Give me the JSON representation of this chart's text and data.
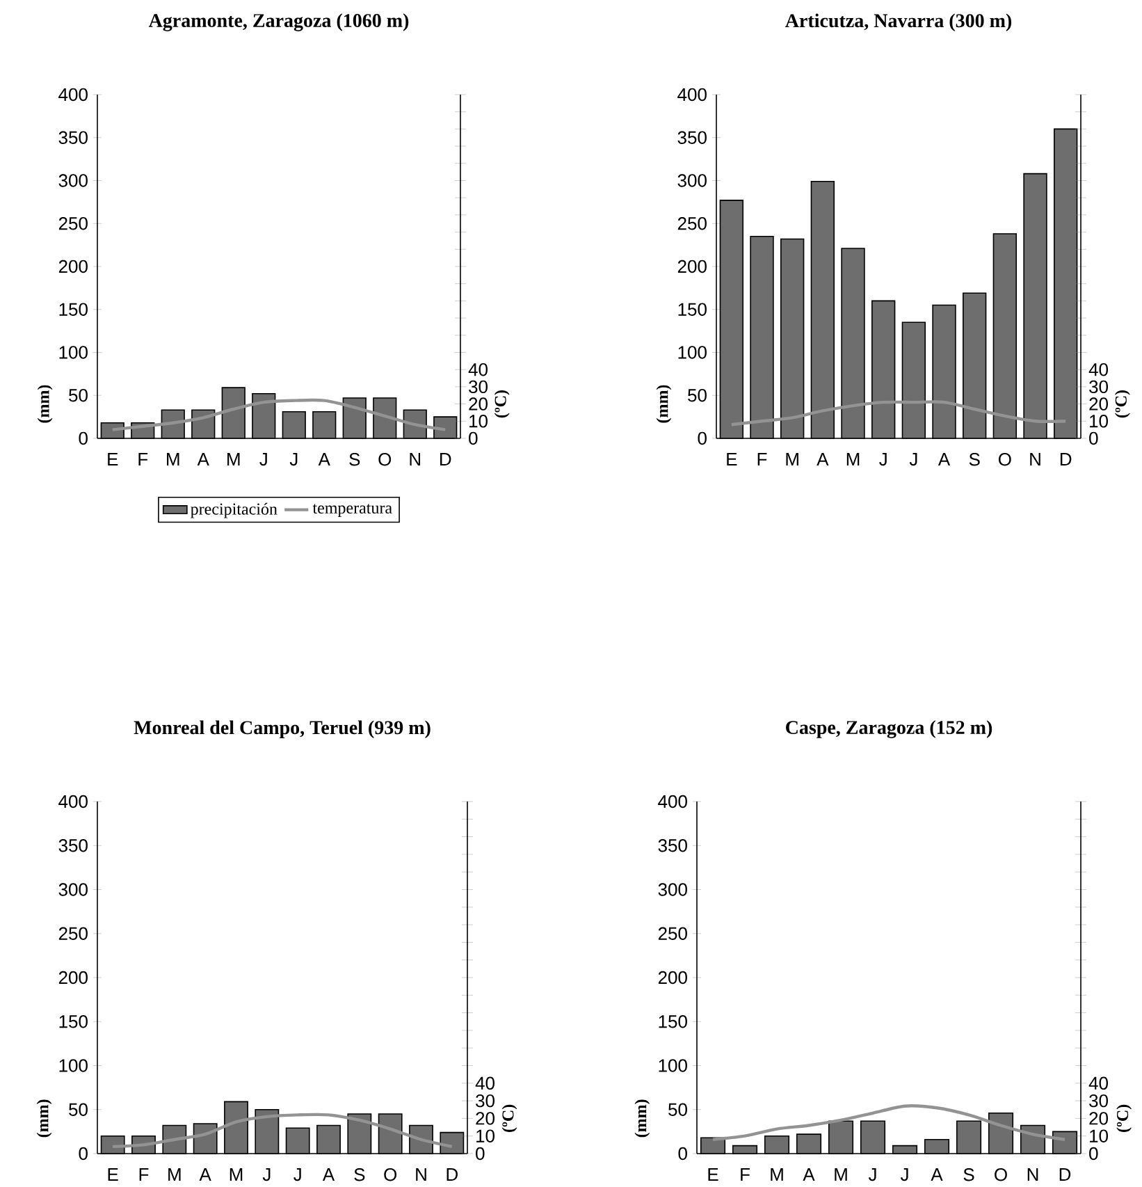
{
  "chart_data": [
    {
      "type": "bar",
      "title": "Agramonte, Zaragoza (1060 m)",
      "ylabel": "(mm)",
      "y2label": "(ºC)",
      "categories": [
        "E",
        "F",
        "M",
        "A",
        "M",
        "J",
        "J",
        "A",
        "S",
        "O",
        "N",
        "D"
      ],
      "ylim": [
        0,
        400
      ],
      "yticks": [
        0,
        50,
        100,
        150,
        200,
        250,
        300,
        350,
        400
      ],
      "y2lim": [
        0,
        200
      ],
      "y2ticks": [
        0,
        10,
        20,
        30,
        40,
        {
          "value": 50,
          "label": null
        },
        {
          "value": 60,
          "label": null
        },
        {
          "value": 70,
          "label": null
        },
        {
          "value": 80,
          "label": null
        },
        {
          "value": 90,
          "label": null
        },
        {
          "value": 100,
          "label": null
        },
        {
          "value": 110,
          "label": null
        },
        {
          "value": 120,
          "label": null
        },
        {
          "value": 130,
          "label": null
        },
        {
          "value": 140,
          "label": null
        },
        {
          "value": 150,
          "label": null
        },
        {
          "value": 160,
          "label": null
        },
        {
          "value": 170,
          "label": null
        },
        {
          "value": 180,
          "label": null
        },
        {
          "value": 190,
          "label": null
        },
        {
          "value": 200,
          "label": null
        }
      ],
      "legend": "bottom",
      "series": [
        {
          "name": "precipitación",
          "color": "#6e6e6e",
          "values": [
            18,
            18,
            33,
            33,
            59,
            52,
            31,
            31,
            47,
            47,
            33,
            25
          ]
        },
        {
          "name": "temperatura",
          "type": "line",
          "axis": "y2",
          "color": "#939393",
          "values": [
            5,
            7,
            9,
            12,
            17,
            21,
            22,
            22,
            18,
            13,
            8,
            5
          ]
        }
      ]
    },
    {
      "type": "bar",
      "title": "Articutza, Navarra (300 m)",
      "ylabel": "(mm)",
      "y2label": "(ºC)",
      "categories": [
        "E",
        "F",
        "M",
        "A",
        "M",
        "J",
        "J",
        "A",
        "S",
        "O",
        "N",
        "D"
      ],
      "ylim": [
        0,
        400
      ],
      "yticks": [
        0,
        50,
        100,
        150,
        200,
        250,
        300,
        350,
        400
      ],
      "y2lim": [
        0,
        200
      ],
      "y2ticks": [
        0,
        10,
        20,
        30,
        40,
        {
          "value": 50,
          "label": null
        },
        {
          "value": 60,
          "label": null
        },
        {
          "value": 70,
          "label": null
        },
        {
          "value": 80,
          "label": null
        },
        {
          "value": 90,
          "label": null
        },
        {
          "value": 100,
          "label": null
        },
        {
          "value": 110,
          "label": null
        },
        {
          "value": 120,
          "label": null
        },
        {
          "value": 130,
          "label": null
        },
        {
          "value": 140,
          "label": null
        },
        {
          "value": 150,
          "label": null
        },
        {
          "value": 160,
          "label": null
        },
        {
          "value": 170,
          "label": null
        },
        {
          "value": 180,
          "label": null
        },
        {
          "value": 190,
          "label": null
        },
        {
          "value": 200,
          "label": null
        }
      ],
      "series": [
        {
          "color": "#6e6e6e",
          "values": [
            277,
            235,
            232,
            299,
            221,
            160,
            135,
            155,
            169,
            238,
            308,
            360
          ]
        },
        {
          "type": "line",
          "axis": "y2",
          "color": "#939393",
          "values": [
            8,
            10,
            12,
            16,
            19,
            21,
            21,
            21,
            17,
            13,
            10,
            10
          ]
        }
      ]
    },
    {
      "type": "bar",
      "title": "Monreal del Campo, Teruel (939 m)",
      "ylabel": "(mm)",
      "y2label": "(ºC)",
      "categories": [
        "E",
        "F",
        "M",
        "A",
        "M",
        "J",
        "J",
        "A",
        "S",
        "O",
        "N",
        "D"
      ],
      "ylim": [
        0,
        400
      ],
      "yticks": [
        0,
        50,
        100,
        150,
        200,
        250,
        300,
        350,
        400
      ],
      "y2lim": [
        0,
        200
      ],
      "y2ticks": [
        0,
        10,
        20,
        30,
        40,
        {
          "value": 50,
          "label": null
        },
        {
          "value": 60,
          "label": null
        },
        {
          "value": 70,
          "label": null
        },
        {
          "value": 80,
          "label": null
        },
        {
          "value": 90,
          "label": null
        },
        {
          "value": 100,
          "label": null
        },
        {
          "value": 110,
          "label": null
        },
        {
          "value": 120,
          "label": null
        },
        {
          "value": 130,
          "label": null
        },
        {
          "value": 140,
          "label": null
        },
        {
          "value": 150,
          "label": null
        },
        {
          "value": 160,
          "label": null
        },
        {
          "value": 170,
          "label": null
        },
        {
          "value": 180,
          "label": null
        },
        {
          "value": 190,
          "label": null
        },
        {
          "value": 200,
          "label": null
        }
      ],
      "series": [
        {
          "color": "#6e6e6e",
          "values": [
            20,
            20,
            32,
            34,
            59,
            50,
            29,
            32,
            45,
            45,
            32,
            24
          ]
        },
        {
          "type": "line",
          "axis": "y2",
          "color": "#939393",
          "values": [
            4,
            5,
            8,
            11,
            18,
            21,
            22,
            22,
            19,
            14,
            8,
            4
          ]
        }
      ]
    },
    {
      "type": "bar",
      "title": "Caspe, Zaragoza (152 m)",
      "ylabel": "(mm)",
      "y2label": "(ºC)",
      "categories": [
        "E",
        "F",
        "M",
        "A",
        "M",
        "J",
        "J",
        "A",
        "S",
        "O",
        "N",
        "D"
      ],
      "ylim": [
        0,
        400
      ],
      "yticks": [
        0,
        50,
        100,
        150,
        200,
        250,
        300,
        350,
        400
      ],
      "y2lim": [
        0,
        200
      ],
      "y2ticks": [
        0,
        10,
        20,
        30,
        40,
        {
          "value": 50,
          "label": null
        },
        {
          "value": 60,
          "label": null
        },
        {
          "value": 70,
          "label": null
        },
        {
          "value": 80,
          "label": null
        },
        {
          "value": 90,
          "label": null
        },
        {
          "value": 100,
          "label": null
        },
        {
          "value": 110,
          "label": null
        },
        {
          "value": 120,
          "label": null
        },
        {
          "value": 130,
          "label": null
        },
        {
          "value": 140,
          "label": null
        },
        {
          "value": 150,
          "label": null
        },
        {
          "value": 160,
          "label": null
        },
        {
          "value": 170,
          "label": null
        },
        {
          "value": 180,
          "label": null
        },
        {
          "value": 190,
          "label": null
        },
        {
          "value": 200,
          "label": null
        }
      ],
      "series": [
        {
          "color": "#6e6e6e",
          "values": [
            18,
            9,
            20,
            22,
            37,
            37,
            9,
            16,
            37,
            46,
            32,
            25
          ]
        },
        {
          "type": "line",
          "axis": "y2",
          "color": "#939393",
          "values": [
            8,
            10,
            14,
            16,
            19,
            23,
            27,
            26,
            22,
            16,
            11,
            8
          ]
        }
      ]
    }
  ]
}
